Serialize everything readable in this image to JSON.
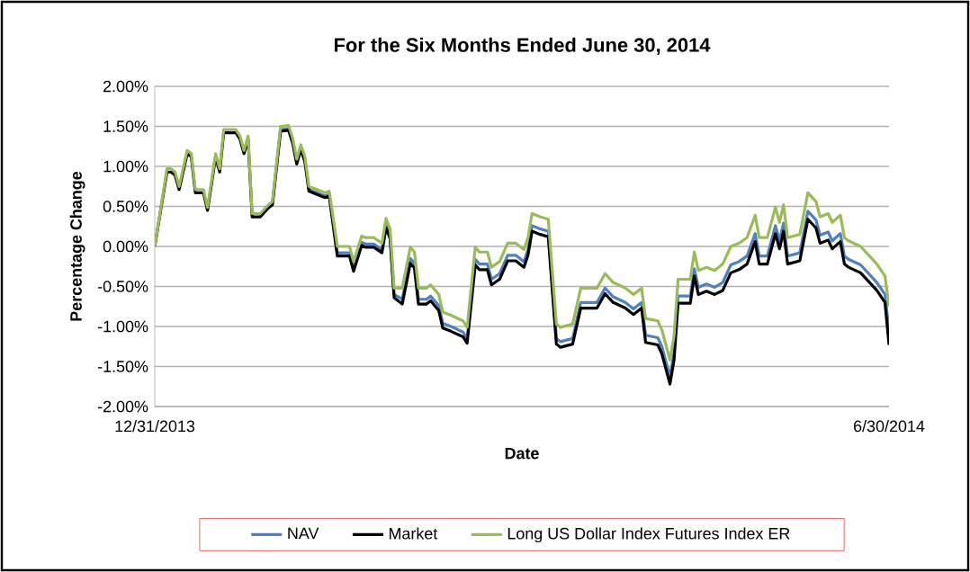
{
  "chart_data": {
    "type": "line",
    "title": "For the Six Months Ended June 30, 2014",
    "xlabel": "Date",
    "ylabel": "Percentage Change",
    "x": [
      "2013-12-31",
      "2014-01-03",
      "2014-01-04",
      "2014-01-05",
      "2014-01-06",
      "2014-01-08",
      "2014-01-09",
      "2014-01-10",
      "2014-01-12",
      "2014-01-13",
      "2014-01-15",
      "2014-01-16",
      "2014-01-17",
      "2014-01-20",
      "2014-01-21",
      "2014-01-22",
      "2014-01-23",
      "2014-01-24",
      "2014-01-26",
      "2014-01-28",
      "2014-01-29",
      "2014-01-31",
      "2014-02-02",
      "2014-02-03",
      "2014-02-04",
      "2014-02-05",
      "2014-02-06",
      "2014-02-07",
      "2014-02-09",
      "2014-02-11",
      "2014-02-12",
      "2014-02-14",
      "2014-02-17",
      "2014-02-18",
      "2014-02-20",
      "2014-02-21",
      "2014-02-23",
      "2014-02-25",
      "2014-02-26",
      "2014-02-27",
      "2014-02-28",
      "2014-03-02",
      "2014-03-04",
      "2014-03-05",
      "2014-03-06",
      "2014-03-08",
      "2014-03-09",
      "2014-03-11",
      "2014-03-12",
      "2014-03-14",
      "2014-03-17",
      "2014-03-18",
      "2014-03-20",
      "2014-03-21",
      "2014-03-23",
      "2014-03-24",
      "2014-03-26",
      "2014-03-28",
      "2014-03-30",
      "2014-04-01",
      "2014-04-02",
      "2014-04-03",
      "2014-04-05",
      "2014-04-07",
      "2014-04-09",
      "2014-04-10",
      "2014-04-13",
      "2014-04-15",
      "2014-04-17",
      "2014-04-19",
      "2014-04-21",
      "2014-04-23",
      "2014-04-26",
      "2014-04-28",
      "2014-04-30",
      "2014-05-01",
      "2014-05-04",
      "2014-05-05",
      "2014-05-07",
      "2014-05-08",
      "2014-05-09",
      "2014-05-12",
      "2014-05-13",
      "2014-05-14",
      "2014-05-16",
      "2014-05-18",
      "2014-05-20",
      "2014-05-22",
      "2014-05-24",
      "2014-05-26",
      "2014-05-28",
      "2014-05-29",
      "2014-05-31",
      "2014-06-02",
      "2014-06-03",
      "2014-06-04",
      "2014-06-05",
      "2014-06-08",
      "2014-06-09",
      "2014-06-10",
      "2014-06-12",
      "2014-06-13",
      "2014-06-15",
      "2014-06-16",
      "2014-06-18",
      "2014-06-19",
      "2014-06-20",
      "2014-06-23",
      "2014-06-25",
      "2014-06-27",
      "2014-06-29",
      "2014-06-30"
    ],
    "series": [
      {
        "name": "NAV",
        "color": "#4f81bd",
        "values": [
          null,
          null,
          null,
          null,
          null,
          null,
          null,
          null,
          null,
          null,
          null,
          null,
          null,
          null,
          null,
          null,
          null,
          null,
          null,
          null,
          0.53,
          1.46,
          1.47,
          1.31,
          1.05,
          1.23,
          1.08,
          0.71,
          0.67,
          0.63,
          0.65,
          -0.08,
          -0.08,
          -0.27,
          0.05,
          0.03,
          0.03,
          -0.04,
          0.27,
          0.14,
          -0.6,
          -0.66,
          -0.15,
          -0.21,
          -0.66,
          -0.66,
          -0.62,
          -0.74,
          -0.96,
          -1.0,
          -1.07,
          -1.15,
          -0.16,
          -0.22,
          -0.22,
          -0.41,
          -0.34,
          -0.11,
          -0.11,
          -0.19,
          -0.04,
          0.26,
          0.22,
          0.19,
          -1.15,
          -1.19,
          -1.15,
          -0.7,
          -0.7,
          -0.7,
          -0.52,
          -0.63,
          -0.7,
          -0.78,
          -0.7,
          -1.11,
          -1.14,
          -1.25,
          -1.63,
          -1.33,
          -0.62,
          -0.62,
          -0.28,
          -0.51,
          -0.47,
          -0.51,
          -0.45,
          -0.23,
          -0.19,
          -0.12,
          0.16,
          -0.12,
          -0.12,
          0.26,
          0.07,
          0.29,
          -0.12,
          -0.08,
          0.18,
          0.44,
          0.33,
          0.14,
          0.18,
          0.07,
          0.16,
          -0.12,
          -0.16,
          -0.23,
          -0.34,
          -0.45,
          -0.6,
          -1.05
        ]
      },
      {
        "name": "Market",
        "color": "#000000",
        "values": [
          0.0,
          0.93,
          0.93,
          0.89,
          0.71,
          1.16,
          1.12,
          0.67,
          0.67,
          0.45,
          1.12,
          0.93,
          1.42,
          1.42,
          1.34,
          1.16,
          1.34,
          0.37,
          0.37,
          0.48,
          0.52,
          1.44,
          1.45,
          1.29,
          1.03,
          1.21,
          1.06,
          0.69,
          0.65,
          0.61,
          0.63,
          -0.12,
          -0.12,
          -0.31,
          0.01,
          -0.01,
          -0.01,
          -0.08,
          0.23,
          0.1,
          -0.64,
          -0.72,
          -0.21,
          -0.27,
          -0.72,
          -0.72,
          -0.68,
          -0.8,
          -1.02,
          -1.06,
          -1.13,
          -1.21,
          -0.23,
          -0.29,
          -0.29,
          -0.48,
          -0.41,
          -0.18,
          -0.18,
          -0.26,
          -0.11,
          0.19,
          0.15,
          0.12,
          -1.22,
          -1.26,
          -1.22,
          -0.77,
          -0.77,
          -0.77,
          -0.59,
          -0.7,
          -0.77,
          -0.85,
          -0.77,
          -1.2,
          -1.23,
          -1.34,
          -1.72,
          -1.42,
          -0.71,
          -0.71,
          -0.37,
          -0.6,
          -0.56,
          -0.6,
          -0.55,
          -0.33,
          -0.29,
          -0.22,
          0.06,
          -0.22,
          -0.22,
          0.16,
          -0.03,
          0.19,
          -0.22,
          -0.18,
          0.08,
          0.34,
          0.23,
          0.04,
          0.08,
          -0.03,
          0.06,
          -0.22,
          -0.26,
          -0.33,
          -0.44,
          -0.55,
          -0.7,
          -1.23
        ]
      },
      {
        "name": "Long US Dollar Index Futures Index ER",
        "color": "#9bbb59",
        "values": [
          0.0,
          0.97,
          0.97,
          0.93,
          0.75,
          1.2,
          1.16,
          0.71,
          0.71,
          0.49,
          1.16,
          0.97,
          1.46,
          1.46,
          1.38,
          1.2,
          1.38,
          0.41,
          0.41,
          0.52,
          0.56,
          1.5,
          1.51,
          1.35,
          1.09,
          1.27,
          1.12,
          0.75,
          0.71,
          0.67,
          0.69,
          0.0,
          0.0,
          -0.19,
          0.13,
          0.11,
          0.11,
          0.04,
          0.35,
          0.22,
          -0.52,
          -0.52,
          -0.01,
          -0.07,
          -0.52,
          -0.52,
          -0.48,
          -0.6,
          -0.82,
          -0.86,
          -0.93,
          -1.01,
          -0.01,
          -0.07,
          -0.07,
          -0.26,
          -0.19,
          0.04,
          0.04,
          -0.04,
          0.11,
          0.41,
          0.37,
          0.34,
          -0.97,
          -1.01,
          -0.97,
          -0.52,
          -0.52,
          -0.52,
          -0.34,
          -0.45,
          -0.52,
          -0.6,
          -0.52,
          -0.9,
          -0.93,
          -1.04,
          -1.42,
          -1.12,
          -0.41,
          -0.41,
          -0.07,
          -0.3,
          -0.26,
          -0.3,
          -0.22,
          0.0,
          0.04,
          0.11,
          0.39,
          0.11,
          0.11,
          0.49,
          0.3,
          0.52,
          0.11,
          0.15,
          0.41,
          0.67,
          0.56,
          0.37,
          0.41,
          0.3,
          0.39,
          0.11,
          0.07,
          0.0,
          -0.11,
          -0.22,
          -0.37,
          -0.75
        ]
      }
    ],
    "xlim": [
      "2013-12-31",
      "2014-06-30"
    ],
    "xticks": [
      {
        "value": "2013-12-31",
        "label": "12/31/2013"
      },
      {
        "value": "2014-06-30",
        "label": "6/30/2014"
      }
    ],
    "ylim": [
      -2,
      2
    ],
    "yticks": [
      {
        "value": -2,
        "label": "-2.00%"
      },
      {
        "value": -1.5,
        "label": "-1.50%"
      },
      {
        "value": -1,
        "label": "-1.00%"
      },
      {
        "value": -0.5,
        "label": "-0.50%"
      },
      {
        "value": 0,
        "label": "0.00%"
      },
      {
        "value": 0.5,
        "label": "0.50%"
      },
      {
        "value": 1,
        "label": "1.00%"
      },
      {
        "value": 1.5,
        "label": "1.50%"
      },
      {
        "value": 2,
        "label": "2.00%"
      }
    ],
    "grid": "y",
    "legend": "bottom",
    "marker": "none",
    "line_style": "solid"
  }
}
